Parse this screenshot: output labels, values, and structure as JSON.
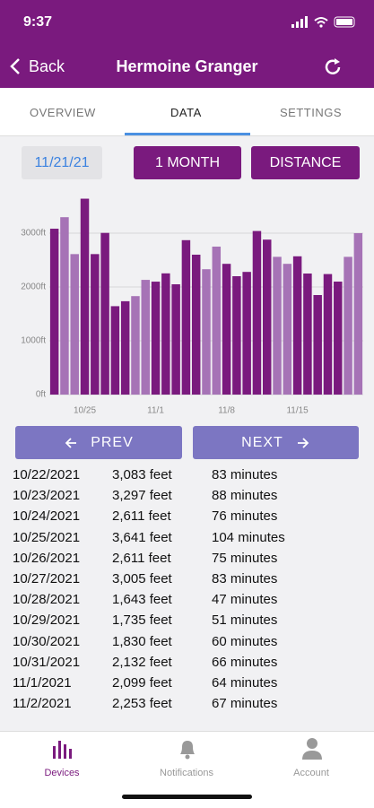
{
  "status_bar": {
    "time": "9:37"
  },
  "header": {
    "back": "Back",
    "title": "Hermoine Granger"
  },
  "tabs": [
    "OVERVIEW",
    "DATA",
    "SETTINGS"
  ],
  "controls": {
    "date": "11/21/21",
    "range": "1 MONTH",
    "metric": "DISTANCE"
  },
  "chart_data": {
    "type": "bar",
    "categories": [
      null,
      null,
      null,
      "10/25",
      null,
      null,
      null,
      null,
      null,
      null,
      "11/1",
      null,
      null,
      null,
      null,
      null,
      null,
      "11/8",
      null,
      null,
      null,
      null,
      null,
      null,
      "11/15",
      null,
      null,
      null,
      null,
      null,
      null
    ],
    "values": [
      3083,
      3297,
      2611,
      3641,
      2611,
      3005,
      1643,
      1735,
      1830,
      2132,
      2099,
      2253,
      2050,
      2870,
      2600,
      2330,
      2750,
      2430,
      2200,
      2280,
      3040,
      2880,
      2560,
      2430,
      2570,
      2250,
      1850,
      2240,
      2100,
      2560,
      3000
    ],
    "colors": [
      "#7a1a7e",
      "#a673b6",
      "#a673b6",
      "#7a1a7e",
      "#7a1a7e",
      "#7a1a7e",
      "#7a1a7e",
      "#7a1a7e",
      "#a673b6",
      "#a673b6",
      "#7a1a7e",
      "#7a1a7e",
      "#7a1a7e",
      "#7a1a7e",
      "#7a1a7e",
      "#a673b6",
      "#a673b6",
      "#7a1a7e",
      "#7a1a7e",
      "#7a1a7e",
      "#7a1a7e",
      "#7a1a7e",
      "#a673b6",
      "#a673b6",
      "#7a1a7e",
      "#7a1a7e",
      "#7a1a7e",
      "#7a1a7e",
      "#7a1a7e",
      "#a673b6",
      "#a673b6"
    ],
    "ylim": [
      0,
      3700
    ],
    "yticks": [
      {
        "value": 0,
        "label": "0ft"
      },
      {
        "value": 1000,
        "label": "1000ft"
      },
      {
        "value": 2000,
        "label": "2000ft"
      },
      {
        "value": 3000,
        "label": "3000ft"
      }
    ],
    "grid": true
  },
  "pager": {
    "prev": "PREV",
    "next": "NEXT"
  },
  "table": {
    "rows": [
      [
        "10/22/2021",
        "3,083 feet",
        "83 minutes"
      ],
      [
        "10/23/2021",
        "3,297 feet",
        "88 minutes"
      ],
      [
        "10/24/2021",
        "2,611 feet",
        "76 minutes"
      ],
      [
        "10/25/2021",
        "3,641 feet",
        "104 minutes"
      ],
      [
        "10/26/2021",
        "2,611 feet",
        "75 minutes"
      ],
      [
        "10/27/2021",
        "3,005 feet",
        "83 minutes"
      ],
      [
        "10/28/2021",
        "1,643 feet",
        "47 minutes"
      ],
      [
        "10/29/2021",
        "1,735 feet",
        "51 minutes"
      ],
      [
        "10/30/2021",
        "1,830 feet",
        "60 minutes"
      ],
      [
        "10/31/2021",
        "2,132 feet",
        "66 minutes"
      ],
      [
        "11/1/2021",
        "2,099 feet",
        "64 minutes"
      ],
      [
        "11/2/2021",
        "2,253 feet",
        "67 minutes"
      ]
    ]
  },
  "bottom_nav": [
    "Devices",
    "Notifications",
    "Account"
  ]
}
